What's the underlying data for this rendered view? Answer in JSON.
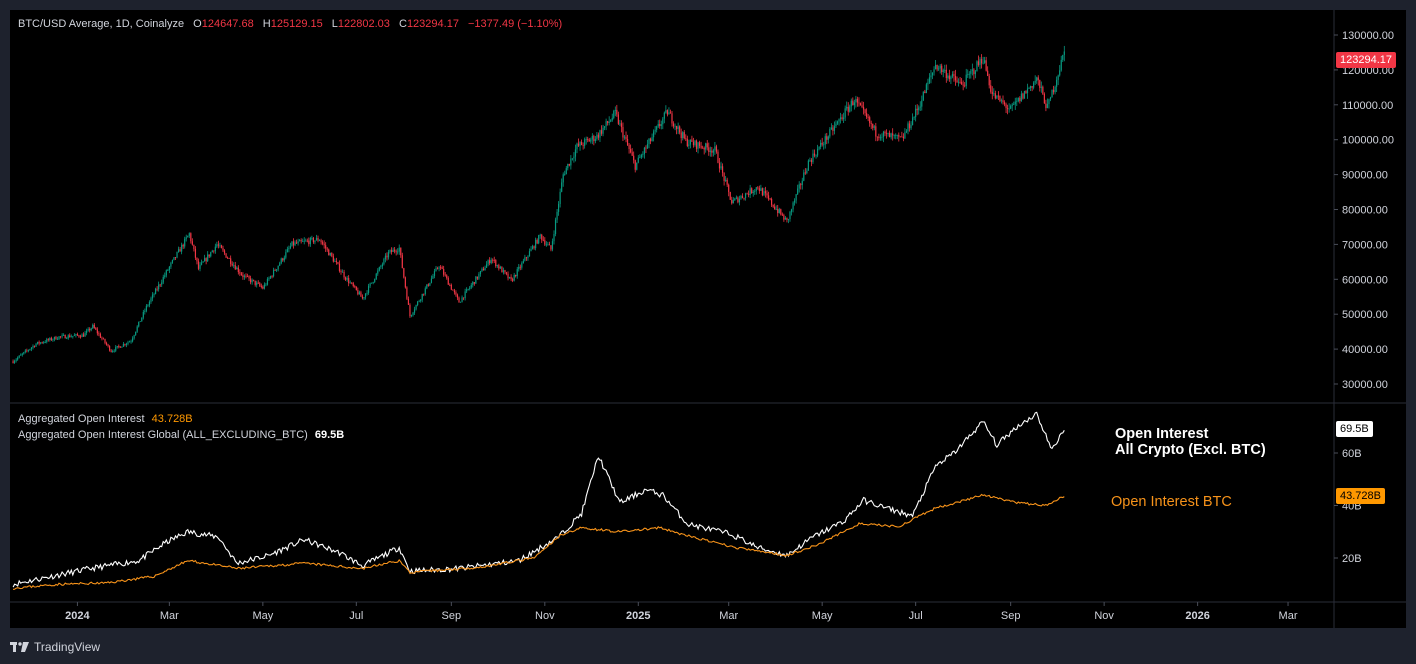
{
  "header": {
    "symbol": "BTC/USD Average, 1D, Coinalyze",
    "o_label": "O",
    "o_value": "124647.68",
    "h_label": "H",
    "h_value": "125129.15",
    "l_label": "L",
    "l_value": "122802.03",
    "c_label": "C",
    "c_value": "123294.17",
    "change": "−1377.49 (−1.10%)"
  },
  "oi_legend": {
    "btc_label": "Aggregated Open Interest",
    "btc_value": "43.728B",
    "all_label": "Aggregated Open Interest Global (ALL_EXCLUDING_BTC)",
    "all_value": "69.5B"
  },
  "annotations": {
    "all_crypto_line1": "Open Interest",
    "all_crypto_line2": "All Crypto (Excl. BTC)",
    "btc": "Open Interest BTC"
  },
  "price_tags": {
    "last_price": "123294.17",
    "oi_all": "69.5B",
    "oi_btc": "43.728B"
  },
  "colors": {
    "background": "#000000",
    "frame": "#1e222d",
    "up_candle": "#089981",
    "down_candle": "#f23645",
    "oi_all_line": "#ffffff",
    "oi_btc_line": "#f7931a"
  },
  "footer": {
    "brand": "TradingView",
    "logo_icon": "tradingview-logo-icon"
  },
  "chart_data": [
    {
      "type": "candlestick",
      "title": "BTC/USD Average, 1D, Coinalyze",
      "ylim": [
        25000,
        135000
      ],
      "y_ticks": [
        "30000.00",
        "40000.00",
        "50000.00",
        "60000.00",
        "70000.00",
        "80000.00",
        "90000.00",
        "100000.00",
        "110000.00",
        "120000.00",
        "130000.00"
      ],
      "x_range": [
        "2023-11-18",
        "2026-03-31"
      ],
      "x_ticks": [
        {
          "date": "2024-01-01",
          "label": "2024"
        },
        {
          "date": "2024-03-01",
          "label": "Mar"
        },
        {
          "date": "2024-05-01",
          "label": "May"
        },
        {
          "date": "2024-07-01",
          "label": "Jul"
        },
        {
          "date": "2024-09-01",
          "label": "Sep"
        },
        {
          "date": "2024-11-01",
          "label": "Nov"
        },
        {
          "date": "2025-01-01",
          "label": "2025"
        },
        {
          "date": "2025-03-01",
          "label": "Mar"
        },
        {
          "date": "2025-05-01",
          "label": "May"
        },
        {
          "date": "2025-07-01",
          "label": "Jul"
        },
        {
          "date": "2025-09-01",
          "label": "Sep"
        },
        {
          "date": "2025-11-01",
          "label": "Nov"
        },
        {
          "date": "2026-01-01",
          "label": "2026"
        },
        {
          "date": "2026-03-01",
          "label": "Mar"
        }
      ],
      "close_series": [
        [
          "2023-11-20",
          36500
        ],
        [
          "2023-12-05",
          41500
        ],
        [
          "2023-12-20",
          43500
        ],
        [
          "2024-01-05",
          44000
        ],
        [
          "2024-01-11",
          46500
        ],
        [
          "2024-01-23",
          39500
        ],
        [
          "2024-02-05",
          42500
        ],
        [
          "2024-02-15",
          52000
        ],
        [
          "2024-02-28",
          62000
        ],
        [
          "2024-03-14",
          73000
        ],
        [
          "2024-03-20",
          63000
        ],
        [
          "2024-04-01",
          70000
        ],
        [
          "2024-04-18",
          61000
        ],
        [
          "2024-05-01",
          57500
        ],
        [
          "2024-05-20",
          70000
        ],
        [
          "2024-06-07",
          71500
        ],
        [
          "2024-06-24",
          60500
        ],
        [
          "2024-07-05",
          54500
        ],
        [
          "2024-07-22",
          67500
        ],
        [
          "2024-07-29",
          69000
        ],
        [
          "2024-08-05",
          49500
        ],
        [
          "2024-08-24",
          64000
        ],
        [
          "2024-09-06",
          53500
        ],
        [
          "2024-09-27",
          66000
        ],
        [
          "2024-10-10",
          59500
        ],
        [
          "2024-10-29",
          72500
        ],
        [
          "2024-11-05",
          68500
        ],
        [
          "2024-11-13",
          90000
        ],
        [
          "2024-11-22",
          98000
        ],
        [
          "2024-12-05",
          101000
        ],
        [
          "2024-12-17",
          107500
        ],
        [
          "2024-12-30",
          92500
        ],
        [
          "2025-01-20",
          108000
        ],
        [
          "2025-02-01",
          99500
        ],
        [
          "2025-02-20",
          97000
        ],
        [
          "2025-03-03",
          82000
        ],
        [
          "2025-03-20",
          86500
        ],
        [
          "2025-04-08",
          76500
        ],
        [
          "2025-04-22",
          93500
        ],
        [
          "2025-05-08",
          103000
        ],
        [
          "2025-05-22",
          111500
        ],
        [
          "2025-06-05",
          102000
        ],
        [
          "2025-06-22",
          100000
        ],
        [
          "2025-07-03",
          109500
        ],
        [
          "2025-07-14",
          121500
        ],
        [
          "2025-07-31",
          115500
        ],
        [
          "2025-08-14",
          123500
        ],
        [
          "2025-08-20",
          113000
        ],
        [
          "2025-09-01",
          108500
        ],
        [
          "2025-09-18",
          117500
        ],
        [
          "2025-09-25",
          109000
        ],
        [
          "2025-10-06",
          125000
        ]
      ]
    },
    {
      "type": "line",
      "title": "Aggregated Open Interest",
      "ylim": [
        5,
        80
      ],
      "y_ticks": [
        "20B",
        "40B",
        "60B"
      ],
      "series": [
        {
          "name": "Aggregated Open Interest Global (ALL_EXCLUDING_BTC)",
          "color": "#ffffff",
          "points": [
            [
              "2023-11-20",
              10
            ],
            [
              "2023-12-15",
              13
            ],
            [
              "2024-01-10",
              16
            ],
            [
              "2024-02-10",
              19
            ],
            [
              "2024-02-28",
              26
            ],
            [
              "2024-03-13",
              30
            ],
            [
              "2024-04-02",
              28
            ],
            [
              "2024-04-14",
              18
            ],
            [
              "2024-05-05",
              21
            ],
            [
              "2024-05-28",
              27
            ],
            [
              "2024-06-20",
              22
            ],
            [
              "2024-07-05",
              17
            ],
            [
              "2024-07-29",
              24
            ],
            [
              "2024-08-05",
              15
            ],
            [
              "2024-09-06",
              16
            ],
            [
              "2024-10-15",
              19
            ],
            [
              "2024-11-10",
              28
            ],
            [
              "2024-11-25",
              37
            ],
            [
              "2024-12-06",
              59
            ],
            [
              "2024-12-20",
              41
            ],
            [
              "2025-01-06",
              46
            ],
            [
              "2025-01-17",
              44
            ],
            [
              "2025-02-02",
              33
            ],
            [
              "2025-03-03",
              29
            ],
            [
              "2025-03-20",
              24
            ],
            [
              "2025-04-08",
              21
            ],
            [
              "2025-04-25",
              28
            ],
            [
              "2025-05-15",
              34
            ],
            [
              "2025-05-28",
              42
            ],
            [
              "2025-06-12",
              39
            ],
            [
              "2025-06-29",
              36
            ],
            [
              "2025-07-14",
              55
            ],
            [
              "2025-07-26",
              60
            ],
            [
              "2025-08-14",
              72
            ],
            [
              "2025-08-23",
              63
            ],
            [
              "2025-09-05",
              70
            ],
            [
              "2025-09-18",
              75
            ],
            [
              "2025-09-28",
              61
            ],
            [
              "2025-10-06",
              69.5
            ]
          ]
        },
        {
          "name": "Aggregated Open Interest",
          "color": "#f7931a",
          "points": [
            [
              "2023-11-20",
              8.5
            ],
            [
              "2023-12-20",
              10
            ],
            [
              "2024-01-20",
              10.5
            ],
            [
              "2024-02-20",
              13
            ],
            [
              "2024-03-13",
              19
            ],
            [
              "2024-04-15",
              16
            ],
            [
              "2024-05-28",
              18
            ],
            [
              "2024-07-05",
              16
            ],
            [
              "2024-07-29",
              19
            ],
            [
              "2024-08-05",
              14.5
            ],
            [
              "2024-09-20",
              16.5
            ],
            [
              "2024-10-25",
              20
            ],
            [
              "2024-11-12",
              29
            ],
            [
              "2024-11-25",
              31.5
            ],
            [
              "2024-12-20",
              30
            ],
            [
              "2025-01-15",
              31.5
            ],
            [
              "2025-02-05",
              28
            ],
            [
              "2025-03-05",
              24
            ],
            [
              "2025-04-08",
              21
            ],
            [
              "2025-04-28",
              25
            ],
            [
              "2025-05-25",
              33
            ],
            [
              "2025-06-20",
              32
            ],
            [
              "2025-07-14",
              39
            ],
            [
              "2025-08-14",
              44
            ],
            [
              "2025-09-05",
              41
            ],
            [
              "2025-09-25",
              40
            ],
            [
              "2025-10-06",
              43.728
            ]
          ]
        }
      ]
    }
  ]
}
